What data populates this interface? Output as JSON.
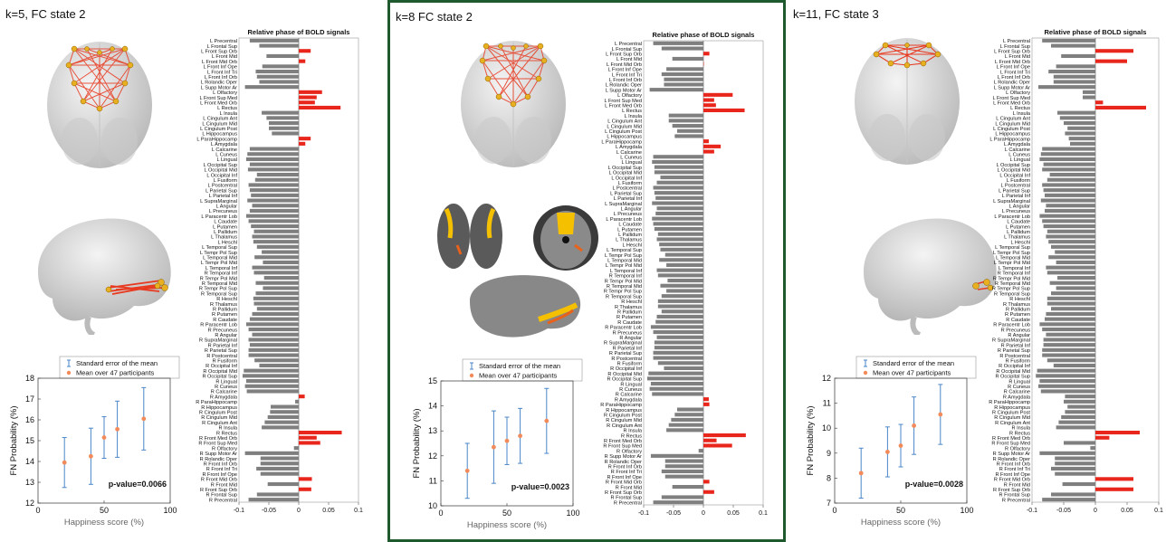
{
  "regions": [
    "L Precentral",
    "L Frontal Sup",
    "L Front Sup Orb",
    "L Front Mid",
    "L Front Mid Orb",
    "L Front Inf Ope",
    "L Front Inf Tri",
    "L Front Inf Orb",
    "L Rolandic Oper",
    "L Supp Motor Ar",
    "L Olfactory",
    "L Front Sup Med",
    "L Front Med Orb",
    "L Rectus",
    "L Insula",
    "L Cingulum Ant",
    "L Cingulum Mid",
    "L Cingulum Post",
    "L Hippocampus",
    "L ParaHippocamp",
    "L Amygdala",
    "L Calcarine",
    "L Cuneus",
    "L Lingual",
    "L Occipital Sup",
    "L Occipital Mid",
    "L Occipital Inf",
    "L Fusiform",
    "L Postcentral",
    "L Parietal Sup",
    "L Parietal Inf",
    "L SupraMarginal",
    "L Angular",
    "L Precuneus",
    "L Paracentr Lob",
    "L Caudate",
    "L Putamen",
    "L Pallidum",
    "L Thalamus",
    "L Heschl",
    "L Temporal Sup",
    "L Tempr Pol Sup",
    "L Temporal Mid",
    "L Tempr Pol Mid",
    "L Temporal Inf",
    "R Temporal Inf",
    "R Tempr Pol Mid",
    "R Temporal Mid",
    "R Tempr Pol Sup",
    "R Temporal Sup",
    "R Heschl",
    "R Thalamus",
    "R Pallidum",
    "R Putamen",
    "R Caudate",
    "R Paracentr Lob",
    "R Precuneus",
    "R Angular",
    "R SupraMarginal",
    "R Parietal Inf",
    "R Parietal Sup",
    "R Postcentral",
    "R Fusiform",
    "R Occipital Inf",
    "R Occipital Mid",
    "R Occipital Sup",
    "R Lingual",
    "R Cuneus",
    "R Calcarine",
    "R Amygdala",
    "R ParaHippocamp",
    "R Hippocampus",
    "R Cingulum Post",
    "R Cingulum Mid",
    "R Cingulum Ant",
    "R Insula",
    "R Rectus",
    "R Front Med Orb",
    "R Front Sup Med",
    "R Olfactory",
    "R Supp Motor Ar",
    "R Rolandic Oper",
    "R Front Inf Orb",
    "R Front Inf Tri",
    "R Front Inf Ope",
    "R Front Mid Orb",
    "R Front Mid",
    "R Front Sup Orb",
    "R Frontal Sup",
    "R Precentral"
  ],
  "panels": [
    {
      "title": "k=5, FC state 2",
      "chart_title": "Relative phase of BOLD signals",
      "x_ticks": [
        "-0.1",
        "-0.05",
        "0",
        "0.05",
        "0.1"
      ],
      "xlim": [
        -0.1,
        0.1
      ],
      "bars": [
        -0.082,
        -0.066,
        0.02,
        -0.054,
        0.011,
        -0.061,
        -0.072,
        -0.07,
        -0.066,
        -0.09,
        0.039,
        0.03,
        0.027,
        0.07,
        -0.062,
        -0.054,
        -0.05,
        -0.05,
        -0.045,
        0.02,
        0.011,
        -0.082,
        -0.086,
        -0.088,
        -0.082,
        -0.085,
        -0.07,
        -0.073,
        -0.084,
        -0.082,
        -0.08,
        -0.086,
        -0.078,
        -0.082,
        -0.088,
        -0.084,
        -0.08,
        -0.075,
        -0.078,
        -0.076,
        -0.07,
        -0.062,
        -0.074,
        -0.06,
        -0.078,
        -0.075,
        -0.058,
        -0.072,
        -0.06,
        -0.072,
        -0.076,
        -0.075,
        -0.07,
        -0.078,
        -0.082,
        -0.088,
        -0.084,
        -0.078,
        -0.084,
        -0.082,
        -0.084,
        -0.084,
        -0.074,
        -0.066,
        -0.092,
        -0.094,
        -0.088,
        -0.09,
        -0.087,
        0.01,
        -0.006,
        -0.047,
        -0.048,
        -0.052,
        -0.057,
        -0.062,
        0.072,
        0.03,
        0.036,
        -0.008,
        -0.09,
        -0.064,
        -0.064,
        -0.071,
        -0.064,
        0.022,
        -0.052,
        0.021,
        -0.07,
        -0.084
      ],
      "scatter": {
        "legend_sem": "Standard error of the mean",
        "legend_mean": "Mean over 47 participants",
        "ylabel": "FN Probability (%)",
        "xlabel": "Happiness score (%)",
        "x_ticks": [
          "0",
          "50",
          "100"
        ],
        "y_ticks": [
          "12",
          "13",
          "14",
          "15",
          "16",
          "17",
          "18"
        ],
        "ylim": [
          12,
          18
        ],
        "xlim": [
          0,
          100
        ],
        "points": [
          {
            "x": 20,
            "y": 13.95,
            "sem": 1.2
          },
          {
            "x": 40,
            "y": 14.25,
            "sem": 1.35
          },
          {
            "x": 50,
            "y": 15.15,
            "sem": 1.0
          },
          {
            "x": 60,
            "y": 15.55,
            "sem": 1.35
          },
          {
            "x": 80,
            "y": 16.05,
            "sem": 1.5
          }
        ],
        "pvalue": "p-value=0.0066"
      }
    },
    {
      "title": "k=8 FC state 2",
      "chart_title": "Relative phase of BOLD signals",
      "x_ticks": [
        "-0.1",
        "-0.05",
        "0",
        "0.05",
        "0.1"
      ],
      "xlim": [
        -0.1,
        0.1
      ],
      "bars": [
        -0.084,
        -0.07,
        0.01,
        -0.052,
        0.0,
        -0.062,
        -0.07,
        -0.066,
        -0.066,
        -0.09,
        0.049,
        0.018,
        0.021,
        0.069,
        -0.058,
        -0.058,
        -0.052,
        -0.044,
        -0.048,
        0.009,
        0.029,
        0.018,
        -0.084,
        -0.086,
        -0.082,
        -0.082,
        -0.072,
        -0.078,
        -0.084,
        -0.082,
        -0.08,
        -0.086,
        -0.078,
        -0.08,
        -0.086,
        -0.084,
        -0.082,
        -0.076,
        -0.078,
        -0.074,
        -0.072,
        -0.064,
        -0.074,
        -0.062,
        -0.078,
        -0.076,
        -0.06,
        -0.072,
        -0.062,
        -0.07,
        -0.076,
        -0.076,
        -0.07,
        -0.078,
        -0.08,
        -0.088,
        -0.084,
        -0.078,
        -0.082,
        -0.082,
        -0.084,
        -0.084,
        -0.076,
        -0.066,
        -0.092,
        -0.094,
        -0.088,
        -0.09,
        -0.086,
        0.009,
        0.01,
        -0.044,
        -0.048,
        -0.054,
        -0.058,
        -0.062,
        0.071,
        0.022,
        0.048,
        -0.008,
        -0.088,
        -0.064,
        -0.064,
        -0.07,
        -0.064,
        0.01,
        -0.052,
        0.018,
        -0.07,
        -0.084
      ],
      "scatter": {
        "legend_sem": "Standard error of the mean",
        "legend_mean": "Mean over 47 participants",
        "ylabel": "FN Probability (%)",
        "xlabel": "Happiness score (%)",
        "x_ticks": [
          "0",
          "50",
          "100"
        ],
        "y_ticks": [
          "10",
          "11",
          "12",
          "13",
          "14",
          "15"
        ],
        "ylim": [
          10,
          15
        ],
        "xlim": [
          0,
          100
        ],
        "points": [
          {
            "x": 20,
            "y": 11.4,
            "sem": 1.1
          },
          {
            "x": 40,
            "y": 12.35,
            "sem": 1.45
          },
          {
            "x": 50,
            "y": 12.6,
            "sem": 0.95
          },
          {
            "x": 60,
            "y": 12.8,
            "sem": 1.1
          },
          {
            "x": 80,
            "y": 13.4,
            "sem": 1.3
          }
        ],
        "pvalue": "p-value=0.0023"
      }
    },
    {
      "title": "k=11, FC state 3",
      "chart_title": "Relative phase of BOLD signals",
      "x_ticks": [
        "-0.1",
        "-0.05",
        "0",
        "0.05",
        "0.1"
      ],
      "xlim": [
        -0.1,
        0.1
      ],
      "bars": [
        -0.084,
        -0.07,
        0.06,
        -0.054,
        0.05,
        -0.062,
        -0.074,
        -0.066,
        -0.066,
        -0.09,
        -0.02,
        -0.02,
        0.012,
        0.08,
        -0.06,
        -0.056,
        -0.05,
        -0.044,
        -0.048,
        -0.042,
        -0.04,
        -0.084,
        -0.086,
        -0.088,
        -0.082,
        -0.084,
        -0.072,
        -0.076,
        -0.084,
        -0.082,
        -0.08,
        -0.086,
        -0.078,
        -0.08,
        -0.088,
        -0.084,
        -0.082,
        -0.076,
        -0.078,
        -0.074,
        -0.07,
        -0.064,
        -0.074,
        -0.062,
        -0.078,
        -0.076,
        -0.06,
        -0.072,
        -0.062,
        -0.07,
        -0.076,
        -0.076,
        -0.07,
        -0.078,
        -0.08,
        -0.088,
        -0.084,
        -0.078,
        -0.082,
        -0.082,
        -0.084,
        -0.084,
        -0.076,
        -0.066,
        -0.092,
        -0.094,
        -0.088,
        -0.09,
        -0.086,
        -0.048,
        -0.05,
        -0.044,
        -0.048,
        -0.054,
        -0.058,
        -0.062,
        0.07,
        0.022,
        -0.05,
        -0.008,
        -0.088,
        -0.064,
        -0.064,
        -0.07,
        -0.064,
        0.06,
        -0.052,
        0.06,
        -0.07,
        -0.084
      ],
      "scatter": {
        "legend_sem": "Standard error of the mean",
        "legend_mean": "Mean over 47 participants",
        "ylabel": "FN Probability (%)",
        "xlabel": "Happiness score (%)",
        "x_ticks": [
          "0",
          "50",
          "100"
        ],
        "y_ticks": [
          "7",
          "8",
          "9",
          "10",
          "11",
          "12"
        ],
        "ylim": [
          7,
          12
        ],
        "xlim": [
          0,
          100
        ],
        "points": [
          {
            "x": 20,
            "y": 8.2,
            "sem": 1.0
          },
          {
            "x": 40,
            "y": 9.05,
            "sem": 1.0
          },
          {
            "x": 50,
            "y": 9.3,
            "sem": 0.85
          },
          {
            "x": 60,
            "y": 10.1,
            "sem": 1.15
          },
          {
            "x": 80,
            "y": 10.55,
            "sem": 1.2
          }
        ],
        "pvalue": "p-value=0.0028"
      }
    }
  ],
  "colors": {
    "negative_bar": "#7f7f7f",
    "positive_bar": "#e8261c",
    "error_bar": "#4a86c8",
    "mean_marker": "#f28a5a",
    "selected_border": "#1f5a2e",
    "brain": "#d3d3d3",
    "network": "#e83a20",
    "activation": "#f5c000"
  },
  "chart_data": [
    {
      "type": "bar",
      "title": "Relative phase of BOLD signals",
      "panel": "k=5, FC state 2",
      "orientation": "horizontal",
      "xlim": [
        -0.1,
        0.1
      ],
      "note_values": "see panels[0].bars aligned with regions"
    },
    {
      "type": "scatter",
      "panel": "k=5, FC state 2",
      "xlabel": "Happiness score (%)",
      "ylabel": "FN Probability (%)",
      "x": [
        20,
        40,
        50,
        60,
        80
      ],
      "y": [
        13.95,
        14.25,
        15.15,
        15.55,
        16.05
      ],
      "sem": [
        1.2,
        1.35,
        1.0,
        1.35,
        1.5
      ]
    },
    {
      "type": "bar",
      "title": "Relative phase of BOLD signals",
      "panel": "k=8 FC state 2",
      "orientation": "horizontal",
      "xlim": [
        -0.1,
        0.1
      ]
    },
    {
      "type": "scatter",
      "panel": "k=8 FC state 2",
      "xlabel": "Happiness score (%)",
      "ylabel": "FN Probability (%)",
      "x": [
        20,
        40,
        50,
        60,
        80
      ],
      "y": [
        11.4,
        12.35,
        12.6,
        12.8,
        13.4
      ],
      "sem": [
        1.1,
        1.45,
        0.95,
        1.1,
        1.3
      ]
    },
    {
      "type": "bar",
      "title": "Relative phase of BOLD signals",
      "panel": "k=11, FC state 3",
      "orientation": "horizontal",
      "xlim": [
        -0.1,
        0.1
      ]
    },
    {
      "type": "scatter",
      "panel": "k=11, FC state 3",
      "xlabel": "Happiness score (%)",
      "ylabel": "FN Probability (%)",
      "x": [
        20,
        40,
        50,
        60,
        80
      ],
      "y": [
        8.2,
        9.05,
        9.3,
        10.1,
        10.55
      ],
      "sem": [
        1.0,
        1.0,
        0.85,
        1.15,
        1.2
      ]
    }
  ]
}
